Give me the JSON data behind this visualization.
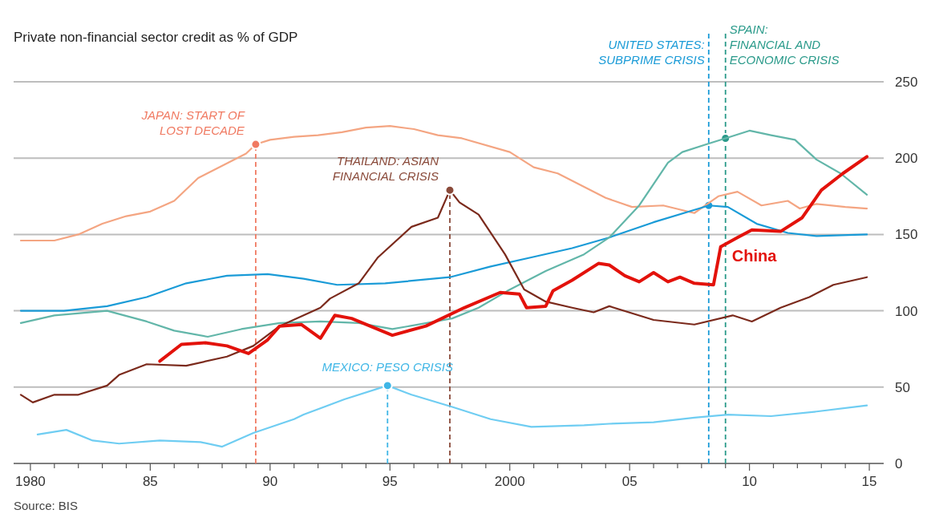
{
  "chart_data": {
    "type": "line",
    "title": "Private non-financial sector credit as % of GDP",
    "xlim": [
      1979.3,
      2015.6
    ],
    "xticks": [
      {
        "value": 1980,
        "label": "1980"
      },
      {
        "value": 1981,
        "label": null
      },
      {
        "value": 1982,
        "label": null
      },
      {
        "value": 1983,
        "label": null
      },
      {
        "value": 1984,
        "label": null
      },
      {
        "value": 1985,
        "label": "85"
      },
      {
        "value": 1986,
        "label": null
      },
      {
        "value": 1987,
        "label": null
      },
      {
        "value": 1988,
        "label": null
      },
      {
        "value": 1989,
        "label": null
      },
      {
        "value": 1990,
        "label": "90"
      },
      {
        "value": 1991,
        "label": null
      },
      {
        "value": 1992,
        "label": null
      },
      {
        "value": 1993,
        "label": null
      },
      {
        "value": 1994,
        "label": null
      },
      {
        "value": 1995,
        "label": "95"
      },
      {
        "value": 1996,
        "label": null
      },
      {
        "value": 1997,
        "label": null
      },
      {
        "value": 1998,
        "label": null
      },
      {
        "value": 1999,
        "label": null
      },
      {
        "value": 2000,
        "label": "2000"
      },
      {
        "value": 2001,
        "label": null
      },
      {
        "value": 2002,
        "label": null
      },
      {
        "value": 2003,
        "label": null
      },
      {
        "value": 2004,
        "label": null
      },
      {
        "value": 2005,
        "label": "05"
      },
      {
        "value": 2006,
        "label": null
      },
      {
        "value": 2007,
        "label": null
      },
      {
        "value": 2008,
        "label": null
      },
      {
        "value": 2009,
        "label": null
      },
      {
        "value": 2010,
        "label": "10"
      },
      {
        "value": 2011,
        "label": null
      },
      {
        "value": 2012,
        "label": null
      },
      {
        "value": 2013,
        "label": null
      },
      {
        "value": 2014,
        "label": null
      },
      {
        "value": 2015,
        "label": "15"
      }
    ],
    "ylim": [
      0,
      250
    ],
    "yticks": [
      0,
      50,
      100,
      150,
      200,
      250
    ],
    "grid": "y",
    "line_style": "solid",
    "marker": "none",
    "series": [
      {
        "color": "#f4a582",
        "x": [
          1979.6,
          1981,
          1982,
          1983,
          1984,
          1985,
          1986,
          1987,
          1988,
          1989,
          1989.4,
          1990,
          1991,
          1992,
          1993,
          1994,
          1995,
          1996,
          1997,
          1998,
          2000,
          2001,
          2002,
          2003,
          2004,
          2005.1,
          2006.4,
          2007.7,
          2008.7,
          2009.5,
          2010.5,
          2011.6,
          2012.1,
          2012.8,
          2014,
          2014.9
        ],
        "values": [
          146,
          146,
          150,
          157,
          162,
          165,
          172,
          187,
          195,
          203,
          209,
          212,
          214,
          215,
          217,
          220,
          221,
          219,
          215,
          213,
          204,
          194,
          190,
          182,
          174,
          168,
          169,
          164,
          175,
          178,
          169,
          172,
          167,
          170,
          168,
          167
        ]
      },
      {
        "color": "#1a9bd7",
        "x": [
          1979.6,
          1981.4,
          1983.2,
          1984.85,
          1986.5,
          1988.2,
          1989.9,
          1991.4,
          1992.8,
          1994.8,
          1997.5,
          1999.2,
          2000.9,
          2002.6,
          2004.15,
          2006,
          2007.9,
          2008.3,
          2009.1,
          2010.3,
          2011.6,
          2012.8,
          2014.9
        ],
        "values": [
          100,
          100,
          103,
          109,
          118,
          123,
          124,
          121,
          117,
          118,
          122,
          129,
          135,
          141,
          148,
          158,
          167,
          169,
          168,
          157,
          151,
          149,
          150
        ]
      },
      {
        "color": "#62b6a9",
        "x": [
          1979.6,
          1981,
          1983.2,
          1984.85,
          1986,
          1987.4,
          1988.8,
          1990.4,
          1992.1,
          1993.7,
          1995.1,
          1997.6,
          1998.7,
          1999.9,
          2001.5,
          2003.1,
          2004.15,
          2005.4,
          2006.6,
          2007.2,
          2008.2,
          2009,
          2010,
          2010.9,
          2011.9,
          2012.8,
          2013.8,
          2014.9
        ],
        "values": [
          92,
          97,
          100,
          93,
          87,
          83,
          88,
          92,
          93,
          92,
          88,
          95,
          102,
          113,
          126,
          137,
          148,
          169,
          197,
          204,
          209,
          213,
          218,
          215,
          212,
          199,
          190,
          176
        ]
      },
      {
        "color": "#7b2a1c",
        "x": [
          1979.6,
          1980.1,
          1981,
          1982,
          1983.2,
          1983.7,
          1984.85,
          1986.5,
          1988.2,
          1989.3,
          1990.4,
          1992.1,
          1992.5,
          1993.7,
          1994.5,
          1995.9,
          1997,
          1997.5,
          1997.9,
          1998.7,
          1999.8,
          2000.6,
          2001.5,
          2002.6,
          2003.5,
          2004.15,
          2006,
          2007.7,
          2009.3,
          2010.1,
          2011.3,
          2012.5,
          2013.5,
          2014.9
        ],
        "values": [
          45,
          40,
          45,
          45,
          51,
          58,
          65,
          64,
          70,
          77,
          90,
          102,
          108,
          118,
          135,
          155,
          161,
          179,
          171,
          163,
          137,
          114,
          106,
          102,
          99,
          103,
          94,
          91,
          97,
          93,
          102,
          109,
          117,
          122
        ]
      },
      {
        "color": "#6fcdf2",
        "x": [
          1980.3,
          1981.5,
          1982.6,
          1983.7,
          1985.4,
          1987.1,
          1988,
          1989.3,
          1991,
          1991.4,
          1993.1,
          1994.9,
          1995.9,
          1997.6,
          1999.2,
          2000.9,
          2003.1,
          2004.15,
          2006,
          2007.7,
          2009.1,
          2010.9,
          2012.8,
          2014.9
        ],
        "values": [
          19,
          22,
          15,
          13,
          15,
          14,
          11,
          20,
          29,
          32,
          42,
          51,
          45,
          37,
          29,
          24,
          25,
          26,
          27,
          30,
          32,
          31,
          34,
          38
        ]
      },
      {
        "name": "China",
        "color": "#e3120b",
        "x": [
          1985.4,
          1986.3,
          1987.3,
          1988.2,
          1989.1,
          1989.9,
          1990.4,
          1991.3,
          1992.1,
          1992.7,
          1993.4,
          1995.1,
          1996.5,
          1998.1,
          1999.6,
          2000.4,
          2000.7,
          2001.5,
          2001.8,
          2002.6,
          2003.7,
          2004.15,
          2004.8,
          2005.4,
          2006,
          2006.6,
          2007.1,
          2007.7,
          2008.5,
          2008.8,
          2009.5,
          2010.1,
          2011.3,
          2012.2,
          2013,
          2013.9,
          2014.9
        ],
        "values": [
          67,
          78,
          79,
          77,
          72,
          81,
          90,
          91,
          82,
          97,
          95,
          84,
          90,
          102,
          112,
          111,
          102,
          103,
          113,
          120,
          131,
          130,
          123,
          119,
          125,
          119,
          122,
          118,
          117,
          142,
          148,
          153,
          152,
          161,
          179,
          190,
          201
        ]
      }
    ],
    "ref_lines": [
      {
        "axis": "x",
        "value": 1989.4,
        "color": "#f07a62",
        "line_style": "dashed"
      },
      {
        "axis": "x",
        "value": 1994.9,
        "color": "#3fb6e6",
        "line_style": "dashed"
      },
      {
        "axis": "x",
        "value": 1997.5,
        "color": "#8a4a3a",
        "line_style": "dashed"
      },
      {
        "axis": "x",
        "value": 2008.3,
        "color": "#1a9bd7",
        "line_style": "dashed",
        "label": "UNITED STATES:\nSUBPRIME CRISIS"
      },
      {
        "axis": "x",
        "value": 2009,
        "color": "#2a9a8a",
        "line_style": "dashed",
        "label": "SPAIN:\nFINANCIAL AND\nECONOMIC CRISIS"
      }
    ],
    "annotations": [
      {
        "text": "JAPAN: START OF\nLOST DECADE",
        "x": 1989.4,
        "y": 209
      },
      {
        "text": "MEXICO: PESO CRISIS",
        "x": 1994.9,
        "y": 51
      },
      {
        "text": "THAILAND: ASIAN\nFINANCIAL CRISIS",
        "x": 1997.5,
        "y": 179
      },
      "Source: BIS"
    ]
  }
}
